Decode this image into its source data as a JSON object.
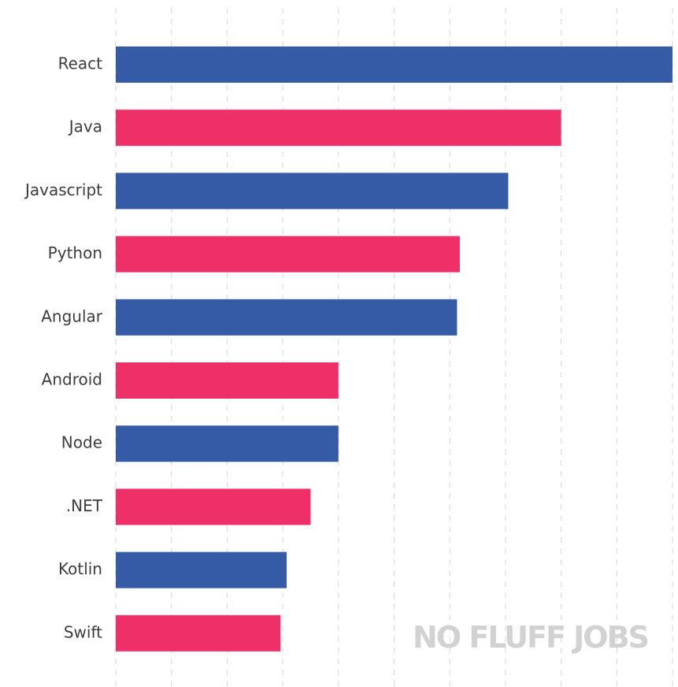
{
  "chart_data": {
    "type": "bar",
    "orientation": "horizontal",
    "categories": [
      "React",
      "Java",
      "Javascript",
      "Python",
      "Angular",
      "Android",
      "Node",
      ".NET",
      "Kotlin",
      "Swift"
    ],
    "values": [
      10.0,
      8.0,
      7.05,
      6.18,
      6.13,
      4.0,
      4.0,
      3.5,
      3.07,
      2.96
    ],
    "xlim": [
      0,
      10
    ],
    "grid": true,
    "colors": [
      "#355ba7",
      "#ef3068"
    ]
  },
  "watermark": {
    "text": "NO FLUFF JOBS",
    "color": "#d2d2d2"
  }
}
